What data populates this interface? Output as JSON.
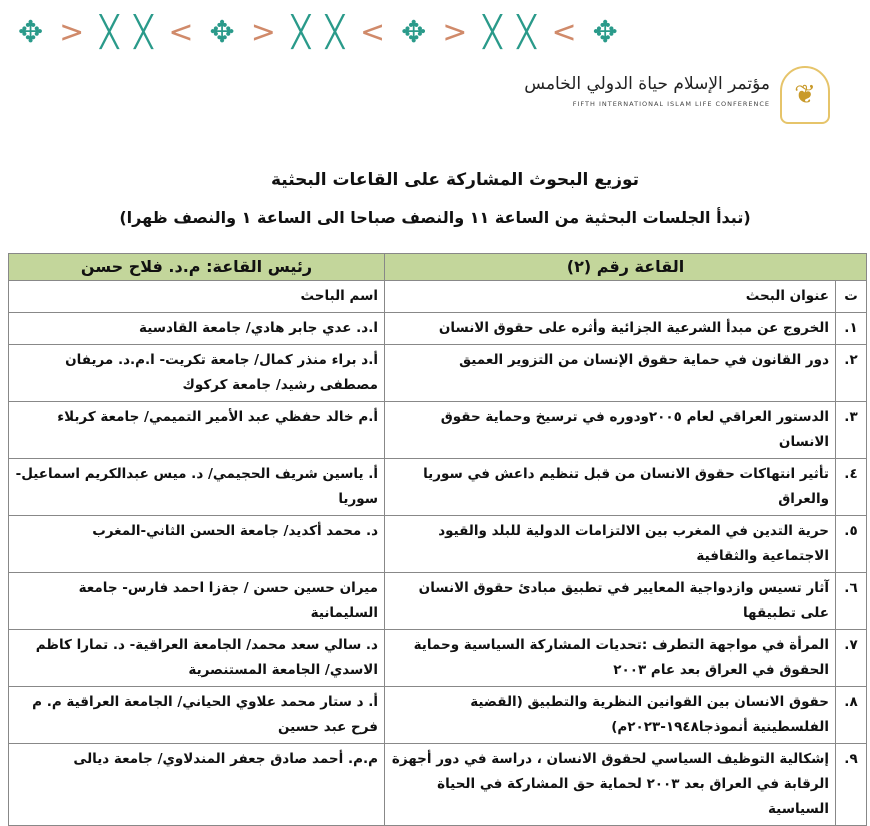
{
  "header": {
    "logo_ar": "مؤتمر الإسلام حياة الدولي الخامس",
    "logo_en": "FIFTH INTERNATIONAL ISLAM LIFE CONFERENCE",
    "colors": {
      "teal": "#2a9a8a",
      "orange": "#d08a6a",
      "header_green": "#c3d69b"
    }
  },
  "title": "توزيع البحوث المشاركة على القاعات البحثية",
  "subtitle": "(تبدأ الجلسات البحثية من الساعة ١١ والنصف صباحا الى الساعة ١ والنصف ظهرا)",
  "table": {
    "hall": "القاعة رقم (٢)",
    "chair": "رئيس القاعة: م.د. فلاح حسن",
    "col_num": "ت",
    "col_title": "عنوان البحث",
    "col_author": "اسم الباحث",
    "rows": [
      {
        "n": "١.",
        "title": "الخروج عن مبدأ الشرعية الجزائية وأثره على حقوق الانسان",
        "author": "ا.د. عدي جابر هادي/ جامعة القادسية"
      },
      {
        "n": "٢.",
        "title": "دور القانون في حماية حقوق الإنسان من التزوير العميق",
        "author": "أ.د براء منذر كمال/ جامعة تكريت- ا.م.د. مريفان مصطفى رشيد/ جامعة كركوك"
      },
      {
        "n": "٣.",
        "title": "الدستور العراقي لعام ٢٠٠٥ودوره في ترسيخ وحماية حقوق الانسان",
        "author": "أ.م خالد حفظي عبد الأمير التميمي/ جامعة كربلاء"
      },
      {
        "n": "٤.",
        "title": "تأثير انتهاكات حقوق الانسان من قبل تنظيم داعش في سوريا والعراق",
        "author": "أ. ياسين شريف الحجيمي/ د. ميس عبدالكريم اسماعيل- سوريا"
      },
      {
        "n": "٥.",
        "title": "حرية التدين في المغرب بين الالتزامات الدولية للبلد والقيود الاجتماعية والثقافية",
        "author": "د. محمد أكديد/ جامعة الحسن الثاني-المغرب"
      },
      {
        "n": "٦.",
        "title": "آثار تسيس وازدواجية المعايير في تطبيق مبادئ حقوق الانسان على تطبيقها",
        "author": "ميران حسين حسن / جةزا احمد فارس- جامعة السليمانية"
      },
      {
        "n": "٧.",
        "title": "المرأة في مواجهة التطرف :تحديات المشاركة السياسية وحماية الحقوق في العراق بعد عام ٢٠٠٣",
        "author": "د. سالي سعد محمد/ الجامعة العراقية- د. تمارا كاظم الاسدي/ الجامعة المستنصرية"
      },
      {
        "n": "٨.",
        "title": "حقوق الانسان بين القوانين النظرية والتطبيق (القضية الفلسطينية أنموذجا١٩٤٨-٢٠٢٣م)",
        "author": "أ. د ستار محمد علاوي الحياني/ الجامعة العراقية م. م فرح عبد حسين"
      },
      {
        "n": "٩.",
        "title": "إشكالية التوظيف السياسي لحقوق الانسان ، دراسة في دور أجهزة الرقابة في العراق بعد ٢٠٠٣ لحماية حق المشاركة في الحياة السياسية",
        "author": "م.م. أحمد صادق جعفر المندلاوي/ جامعة ديالى"
      }
    ]
  }
}
